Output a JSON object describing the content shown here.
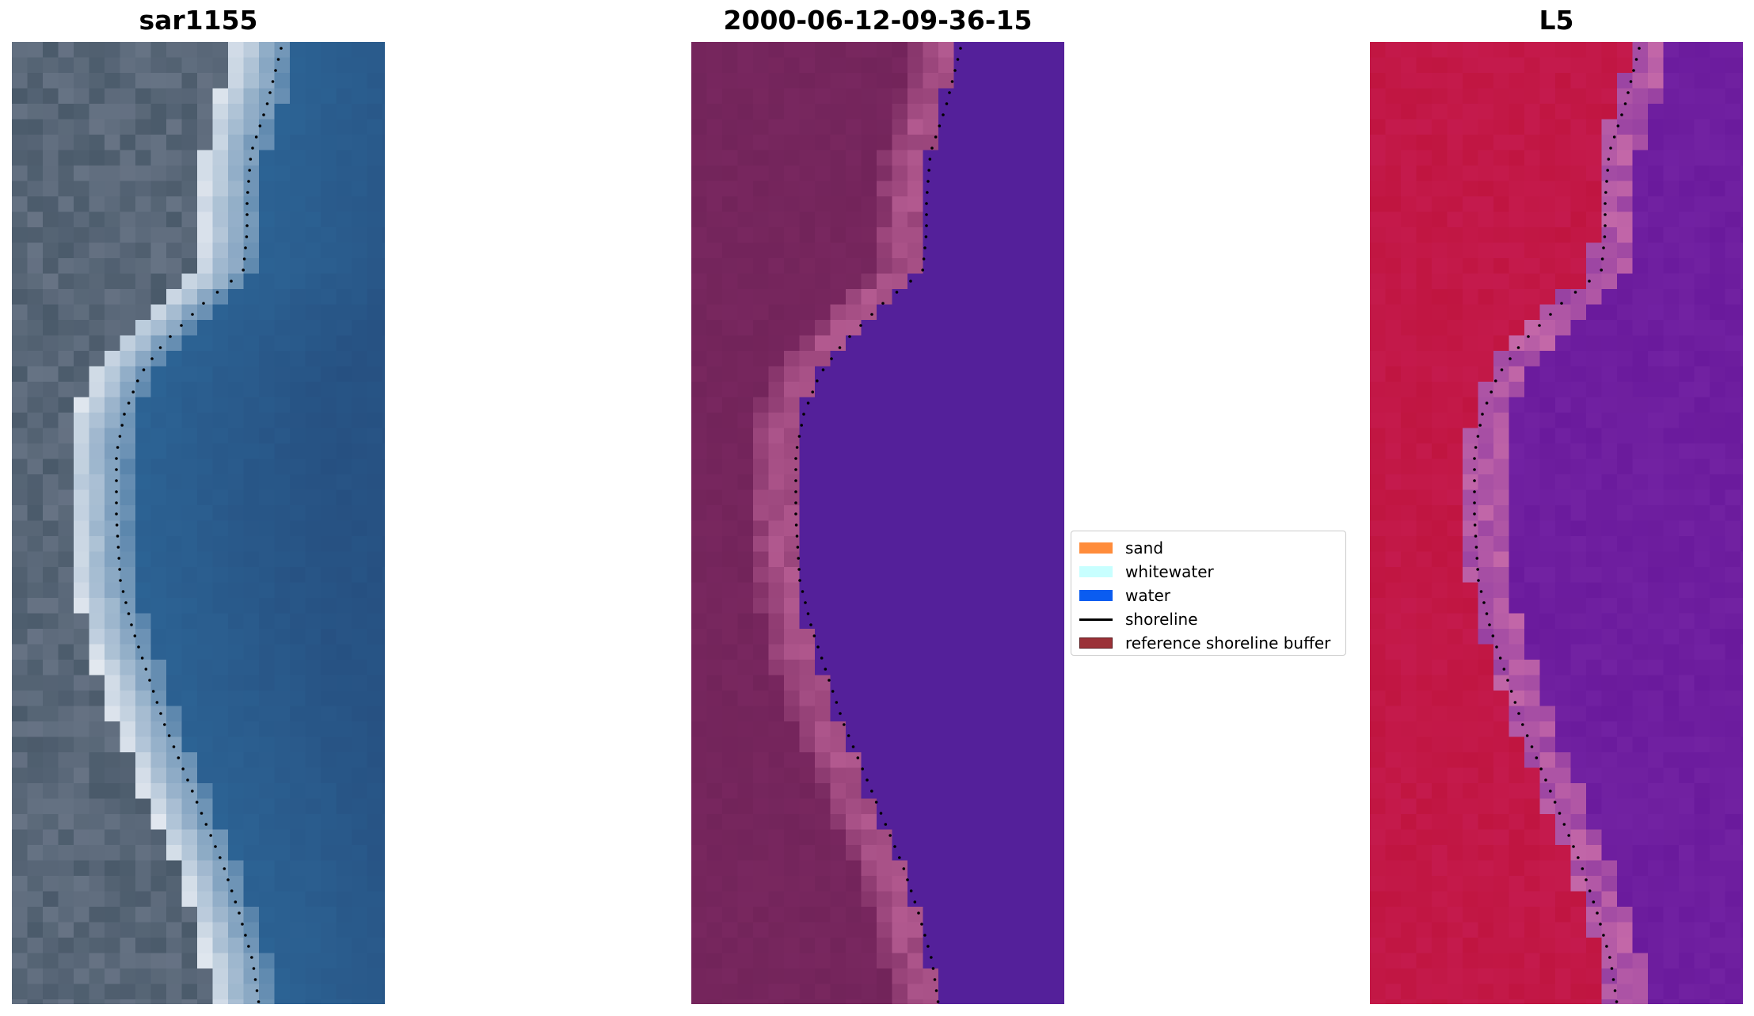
{
  "panels": [
    {
      "title": "sar1155"
    },
    {
      "title": "2000-06-12-09-36-15"
    },
    {
      "title": "L5"
    }
  ],
  "legend": {
    "items": [
      {
        "label": "sand",
        "type": "patch",
        "color": "#ff8c3b"
      },
      {
        "label": "whitewater",
        "type": "patch",
        "color": "#c8ffff"
      },
      {
        "label": "water",
        "type": "patch",
        "color": "#0a5cf0"
      },
      {
        "label": "shoreline",
        "type": "line",
        "color": "#000000"
      },
      {
        "label": "reference shoreline buffer",
        "type": "patch",
        "color": "#9b3238"
      }
    ]
  },
  "colors": {
    "rgb_water": "#2d6596",
    "rgb_land": "#4a5a6a",
    "rgb_beach": "#e8ecf2",
    "class_land": "#72245a",
    "class_water": "#54209a",
    "class_buffer": "#b35a90",
    "ndwi_land": "#c01540",
    "ndwi_water": "#6a1a9c",
    "ndwi_edge": "#c468a8"
  }
}
